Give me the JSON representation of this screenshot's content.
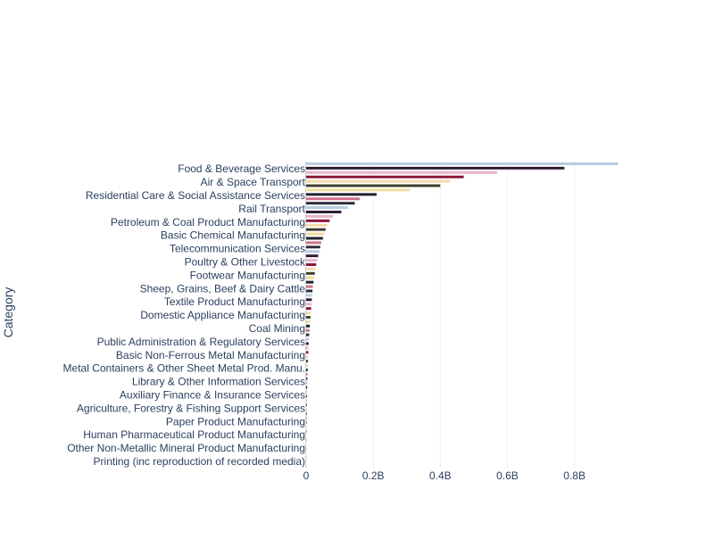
{
  "chart_data": {
    "type": "bar",
    "orientation": "horizontal",
    "ylabel": "Category",
    "xlabel": "",
    "xlim": [
      0,
      0.95
    ],
    "x_unit": "billions",
    "xticks": [
      {
        "value": 0,
        "label": "0"
      },
      {
        "value": 0.2,
        "label": "0.2B"
      },
      {
        "value": 0.4,
        "label": "0.4B"
      },
      {
        "value": 0.6,
        "label": "0.6B"
      },
      {
        "value": 0.8,
        "label": "0.8B"
      }
    ],
    "grid": "vertical",
    "legend": "none",
    "label_order": "top-to-bottom",
    "labeled_categories": [
      "Food & Beverage Services",
      "Air & Space Transport",
      "Residential Care & Social Assistance Services",
      "Rail Transport",
      "Petroleum & Coal Product Manufacturing",
      "Basic Chemical Manufacturing",
      "Telecommunication Services",
      "Poultry & Other Livestock",
      "Footwear Manufacturing",
      "Sheep, Grains, Beef & Dairy Cattle",
      "Textile Product Manufacturing",
      "Domestic Appliance Manufacturing",
      "Coal Mining",
      "Public Administration & Regulatory Services",
      "Basic Non-Ferrous Metal Manufacturing",
      "Metal Containers & Other Sheet Metal Prod. Manu.",
      "Library & Other Information Services",
      "Auxiliary Finance & Insurance Services",
      "Agriculture, Forestry & Fishing Support Services",
      "Paper Product Manufacturing",
      "Human Pharmaceutical Product Manufacturing",
      "Other Non-Metallic Mineral Product Manufacturing",
      "Printing (inc reproduction of recorded media)"
    ],
    "bar_order": "top-to-bottom",
    "values": [
      0.93,
      0.77,
      0.57,
      0.47,
      0.43,
      0.4,
      0.31,
      0.21,
      0.16,
      0.145,
      0.125,
      0.105,
      0.08,
      0.07,
      0.063,
      0.058,
      0.055,
      0.05,
      0.045,
      0.042,
      0.04,
      0.036,
      0.033,
      0.03,
      0.028,
      0.026,
      0.024,
      0.022,
      0.02,
      0.019,
      0.018,
      0.017,
      0.016,
      0.015,
      0.014,
      0.013,
      0.012,
      0.011,
      0.01,
      0.009,
      0.008,
      0.0075,
      0.007,
      0.0065,
      0.006,
      0.0055,
      0.005,
      0.0045,
      0.004,
      0.0037,
      0.0034,
      0.0031,
      0.0028,
      0.0025,
      0.0023,
      0.0021,
      0.0019,
      0.0017,
      0.0015,
      0.0013,
      0.0011,
      0.001,
      0.0009,
      0.0008,
      0.0007,
      0.0006,
      0.0005,
      0.0004,
      0.0003,
      0.0002
    ],
    "bar_color_cycle": [
      "#b6cbe3",
      "#2e1c33",
      "#e8b4c8",
      "#8a1638",
      "#f3d9a4",
      "#3d3d2a",
      "#f0dca0",
      "#1f1f2e",
      "#cf6f88",
      "#2b2b3a"
    ]
  }
}
